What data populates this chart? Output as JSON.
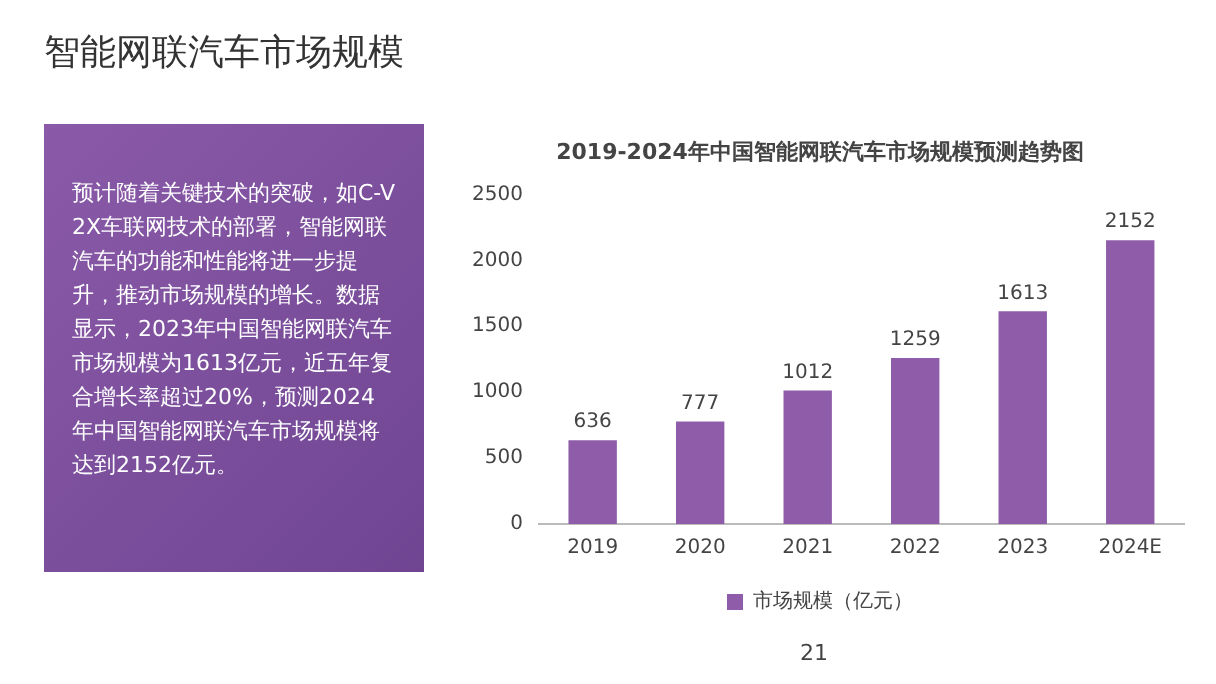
{
  "chart_data": [
    {
      "type": "other",
      "title": "智能网联汽车市场规模",
      "annotations": [
        "预计随着关键技术的突破，如C-V2X车联网技术的部署，智能网联汽车的功能和性能将进一步提升，推动市场规模的增长。数据显示，2023年中国智能网联汽车市场规模为1613亿元，近五年复合增长率超过20%，预测2024年中国智能网联汽车市场规模将达到2152亿元。"
      ]
    },
    {
      "type": "bar",
      "title": "2019-2024年中国智能网联汽车市场规模预测趋势图",
      "categories": [
        "2019",
        "2020",
        "2021",
        "2022",
        "2023",
        "2024E"
      ],
      "series": [
        {
          "name": "市场规模（亿元）",
          "color": "#8e5ca8",
          "values": [
            636,
            777,
            1012,
            1259,
            1613,
            2152
          ]
        }
      ],
      "ylim": [
        0,
        2500
      ],
      "yticks": [
        0,
        500,
        1000,
        1500,
        2000,
        2500
      ],
      "grid": false,
      "legend": "bottom",
      "data_labels": true,
      "annotations": [
        "21"
      ]
    }
  ]
}
